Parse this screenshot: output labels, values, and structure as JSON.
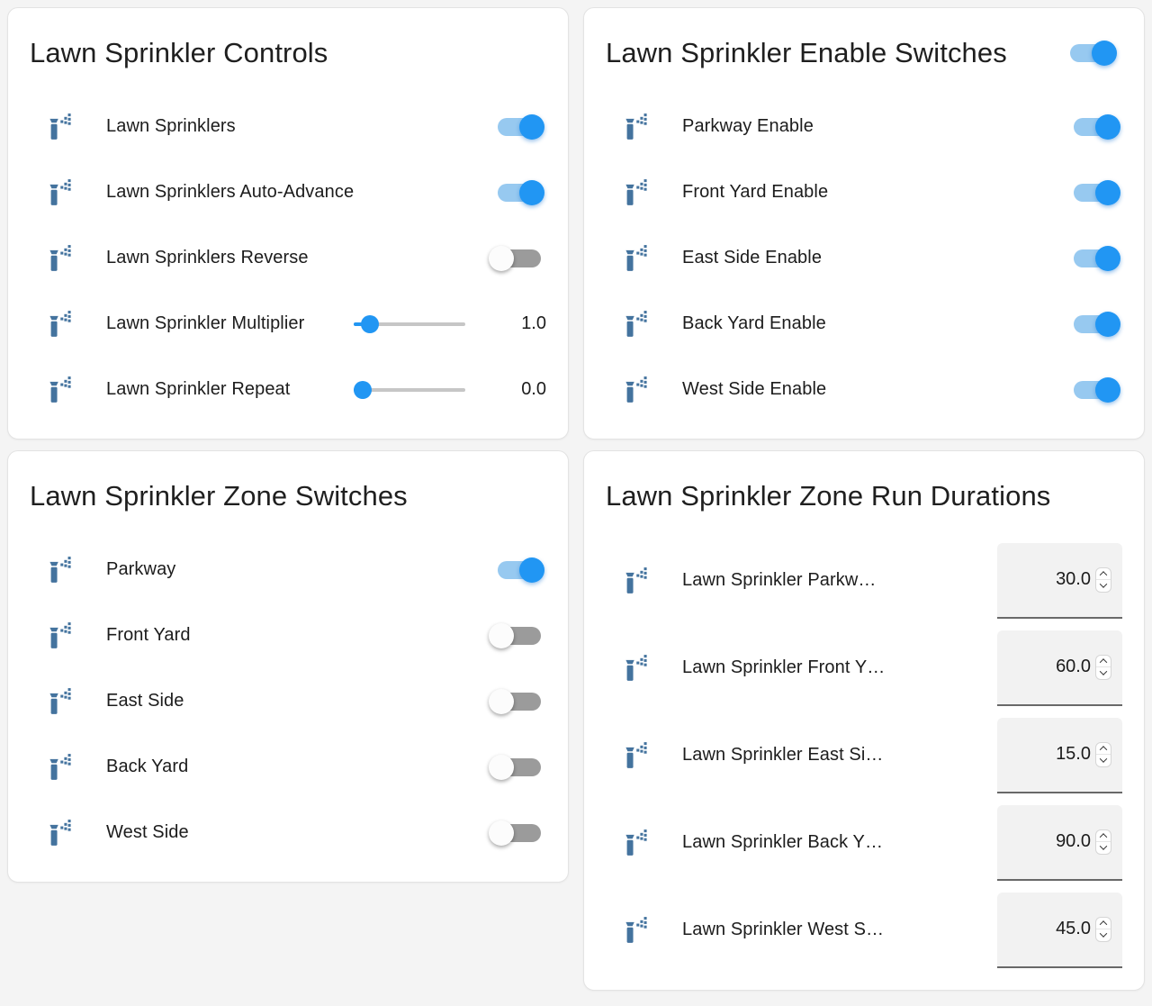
{
  "page": {
    "background_color": "#f4f4f4",
    "card_color": "#ffffff"
  },
  "colors": {
    "accent_blue": "#2196f3",
    "switch_on_track": "#97c9f0",
    "switch_off_track": "#9b9b9b",
    "icon_blue": "#44739e",
    "text": "#1c1c1c"
  },
  "cards": {
    "controls": {
      "title": "Lawn Sprinkler Controls",
      "rows": [
        {
          "type": "toggle",
          "icon": "sprinkler-icon",
          "label": "Lawn Sprinklers",
          "state": "on"
        },
        {
          "type": "toggle",
          "icon": "sprinkler-icon",
          "label": "Lawn Sprinklers Auto-Advance",
          "state": "on"
        },
        {
          "type": "toggle",
          "icon": "sprinkler-icon",
          "label": "Lawn Sprinklers Reverse",
          "state": "off"
        },
        {
          "type": "slider",
          "icon": "sprinkler-icon",
          "label": "Lawn Sprinkler Multiplier",
          "value": "1.0",
          "percent": 8
        },
        {
          "type": "slider",
          "icon": "sprinkler-icon",
          "label": "Lawn Sprinkler Repeat",
          "value": "0.0",
          "percent": 0
        }
      ]
    },
    "enable": {
      "title": "Lawn Sprinkler Enable Switches",
      "header_toggle_state": "on",
      "rows": [
        {
          "type": "toggle",
          "icon": "sprinkler-icon",
          "label": "Parkway Enable",
          "state": "on"
        },
        {
          "type": "toggle",
          "icon": "sprinkler-icon",
          "label": "Front Yard Enable",
          "state": "on"
        },
        {
          "type": "toggle",
          "icon": "sprinkler-icon",
          "label": "East Side Enable",
          "state": "on"
        },
        {
          "type": "toggle",
          "icon": "sprinkler-icon",
          "label": "Back Yard Enable",
          "state": "on"
        },
        {
          "type": "toggle",
          "icon": "sprinkler-icon",
          "label": "West Side Enable",
          "state": "on"
        }
      ]
    },
    "zones": {
      "title": "Lawn Sprinkler Zone Switches",
      "rows": [
        {
          "type": "toggle",
          "icon": "sprinkler-icon",
          "label": "Parkway",
          "state": "on"
        },
        {
          "type": "toggle",
          "icon": "sprinkler-icon",
          "label": "Front Yard",
          "state": "off"
        },
        {
          "type": "toggle",
          "icon": "sprinkler-icon",
          "label": "East Side",
          "state": "off"
        },
        {
          "type": "toggle",
          "icon": "sprinkler-icon",
          "label": "Back Yard",
          "state": "off"
        },
        {
          "type": "toggle",
          "icon": "sprinkler-icon",
          "label": "West Side",
          "state": "off"
        }
      ]
    },
    "durations": {
      "title": "Lawn Sprinkler Zone Run Durations",
      "rows": [
        {
          "type": "number",
          "icon": "sprinkler-icon",
          "label": "Lawn Sprinkler Parkw…",
          "value": "30.0"
        },
        {
          "type": "number",
          "icon": "sprinkler-icon",
          "label": "Lawn Sprinkler Front Y…",
          "value": "60.0"
        },
        {
          "type": "number",
          "icon": "sprinkler-icon",
          "label": "Lawn Sprinkler East Si…",
          "value": "15.0"
        },
        {
          "type": "number",
          "icon": "sprinkler-icon",
          "label": "Lawn Sprinkler Back Y…",
          "value": "90.0"
        },
        {
          "type": "number",
          "icon": "sprinkler-icon",
          "label": "Lawn Sprinkler West S…",
          "value": "45.0"
        }
      ]
    }
  }
}
